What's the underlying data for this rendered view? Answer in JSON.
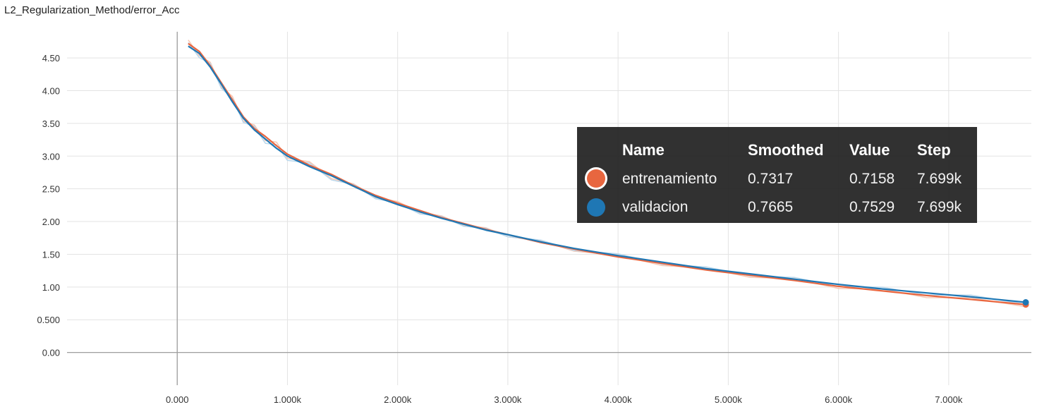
{
  "chart_data": {
    "type": "line",
    "title": "L2_Regularization_Method/error_Acc",
    "xlabel": "",
    "ylabel": "",
    "x_ticks": [
      "0.000",
      "1.000k",
      "2.000k",
      "3.000k",
      "4.000k",
      "5.000k",
      "6.000k",
      "7.000k"
    ],
    "y_ticks": [
      "0.00",
      "0.500",
      "1.00",
      "1.50",
      "2.00",
      "2.50",
      "3.00",
      "3.50",
      "4.00",
      "4.50"
    ],
    "xlim": [
      -1000,
      7750
    ],
    "ylim": [
      -0.5,
      4.9
    ],
    "grid": true,
    "series": [
      {
        "name": "entrenamiento",
        "color": "#e8663f",
        "raw_color": "#f6c7b3",
        "x": [
          100,
          200,
          300,
          400,
          500,
          600,
          700,
          800,
          900,
          1000,
          1200,
          1400,
          1600,
          1800,
          2000,
          2200,
          2400,
          2600,
          2800,
          3000,
          3300,
          3600,
          4000,
          4400,
          4800,
          5200,
          5600,
          6000,
          6400,
          6800,
          7200,
          7699
        ],
        "y": [
          4.72,
          4.6,
          4.38,
          4.12,
          3.86,
          3.6,
          3.42,
          3.3,
          3.16,
          3.03,
          2.86,
          2.72,
          2.55,
          2.4,
          2.28,
          2.17,
          2.06,
          1.97,
          1.88,
          1.8,
          1.68,
          1.58,
          1.46,
          1.36,
          1.26,
          1.18,
          1.1,
          1.01,
          0.94,
          0.87,
          0.81,
          0.7317
        ]
      },
      {
        "name": "validacion",
        "color": "#1f77b4",
        "raw_color": "#b9d7ec",
        "x": [
          100,
          200,
          300,
          400,
          500,
          600,
          700,
          800,
          900,
          1000,
          1200,
          1400,
          1600,
          1800,
          2000,
          2200,
          2400,
          2600,
          2800,
          3000,
          3300,
          3600,
          4000,
          4400,
          4800,
          5200,
          5600,
          6000,
          6400,
          6800,
          7200,
          7699
        ],
        "y": [
          4.68,
          4.57,
          4.36,
          4.1,
          3.83,
          3.58,
          3.4,
          3.26,
          3.12,
          3.0,
          2.84,
          2.7,
          2.54,
          2.38,
          2.26,
          2.15,
          2.05,
          1.96,
          1.87,
          1.8,
          1.69,
          1.59,
          1.48,
          1.38,
          1.28,
          1.2,
          1.12,
          1.04,
          0.97,
          0.91,
          0.85,
          0.7665
        ]
      }
    ]
  },
  "tooltip": {
    "headers": {
      "name": "Name",
      "smoothed": "Smoothed",
      "value": "Value",
      "step": "Step"
    },
    "rows": [
      {
        "name": "entrenamiento",
        "smoothed": "0.7317",
        "value": "0.7158",
        "step": "7.699k",
        "color": "#e8663f"
      },
      {
        "name": "validacion",
        "smoothed": "0.7665",
        "value": "0.7529",
        "step": "7.699k",
        "color": "#1f77b4"
      }
    ]
  }
}
